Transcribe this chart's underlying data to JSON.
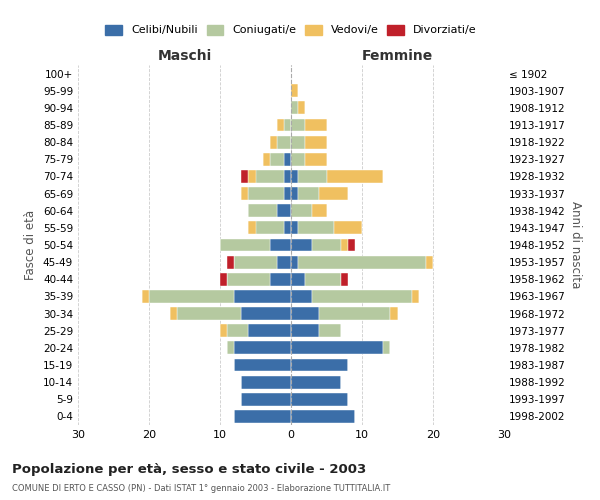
{
  "age_groups": [
    "100+",
    "95-99",
    "90-94",
    "85-89",
    "80-84",
    "75-79",
    "70-74",
    "65-69",
    "60-64",
    "55-59",
    "50-54",
    "45-49",
    "40-44",
    "35-39",
    "30-34",
    "25-29",
    "20-24",
    "15-19",
    "10-14",
    "5-9",
    "0-4"
  ],
  "birth_years": [
    "≤ 1902",
    "1903-1907",
    "1908-1912",
    "1913-1917",
    "1918-1922",
    "1923-1927",
    "1928-1932",
    "1933-1937",
    "1938-1942",
    "1943-1947",
    "1948-1952",
    "1953-1957",
    "1958-1962",
    "1963-1967",
    "1968-1972",
    "1973-1977",
    "1978-1982",
    "1983-1987",
    "1988-1992",
    "1993-1997",
    "1998-2002"
  ],
  "male": {
    "celibi": [
      0,
      0,
      0,
      0,
      0,
      1,
      1,
      1,
      2,
      1,
      3,
      2,
      3,
      8,
      7,
      6,
      8,
      8,
      7,
      7,
      8
    ],
    "coniugati": [
      0,
      0,
      0,
      1,
      2,
      2,
      4,
      5,
      4,
      4,
      7,
      6,
      6,
      12,
      9,
      3,
      1,
      0,
      0,
      0,
      0
    ],
    "vedovi": [
      0,
      0,
      0,
      1,
      1,
      1,
      1,
      1,
      0,
      1,
      0,
      0,
      0,
      1,
      1,
      1,
      0,
      0,
      0,
      0,
      0
    ],
    "divorziati": [
      0,
      0,
      0,
      0,
      0,
      0,
      1,
      0,
      0,
      0,
      0,
      1,
      1,
      0,
      0,
      0,
      0,
      0,
      0,
      0,
      0
    ]
  },
  "female": {
    "nubili": [
      0,
      0,
      0,
      0,
      0,
      0,
      1,
      1,
      0,
      1,
      3,
      1,
      2,
      3,
      4,
      4,
      13,
      8,
      7,
      8,
      9
    ],
    "coniugate": [
      0,
      0,
      1,
      2,
      2,
      2,
      4,
      3,
      3,
      5,
      4,
      18,
      5,
      14,
      10,
      3,
      1,
      0,
      0,
      0,
      0
    ],
    "vedove": [
      0,
      1,
      1,
      3,
      3,
      3,
      8,
      4,
      2,
      4,
      1,
      1,
      0,
      1,
      1,
      0,
      0,
      0,
      0,
      0,
      0
    ],
    "divorziate": [
      0,
      0,
      0,
      0,
      0,
      0,
      0,
      0,
      0,
      0,
      1,
      0,
      1,
      0,
      0,
      0,
      0,
      0,
      0,
      0,
      0
    ]
  },
  "colors": {
    "celibi": "#3B6EA8",
    "coniugati": "#B5C9A0",
    "vedovi": "#F0C060",
    "divorziati": "#C0202A"
  },
  "title": "Popolazione per età, sesso e stato civile - 2003",
  "subtitle": "COMUNE DI ERTO E CASSO (PN) - Dati ISTAT 1° gennaio 2003 - Elaborazione TUTTITALIA.IT",
  "xlabel_left": "Maschi",
  "xlabel_right": "Femmine",
  "ylabel_left": "Fasce di età",
  "ylabel_right": "Anni di nascita",
  "xlim": 30,
  "bg_color": "#ffffff",
  "grid_color": "#cccccc"
}
